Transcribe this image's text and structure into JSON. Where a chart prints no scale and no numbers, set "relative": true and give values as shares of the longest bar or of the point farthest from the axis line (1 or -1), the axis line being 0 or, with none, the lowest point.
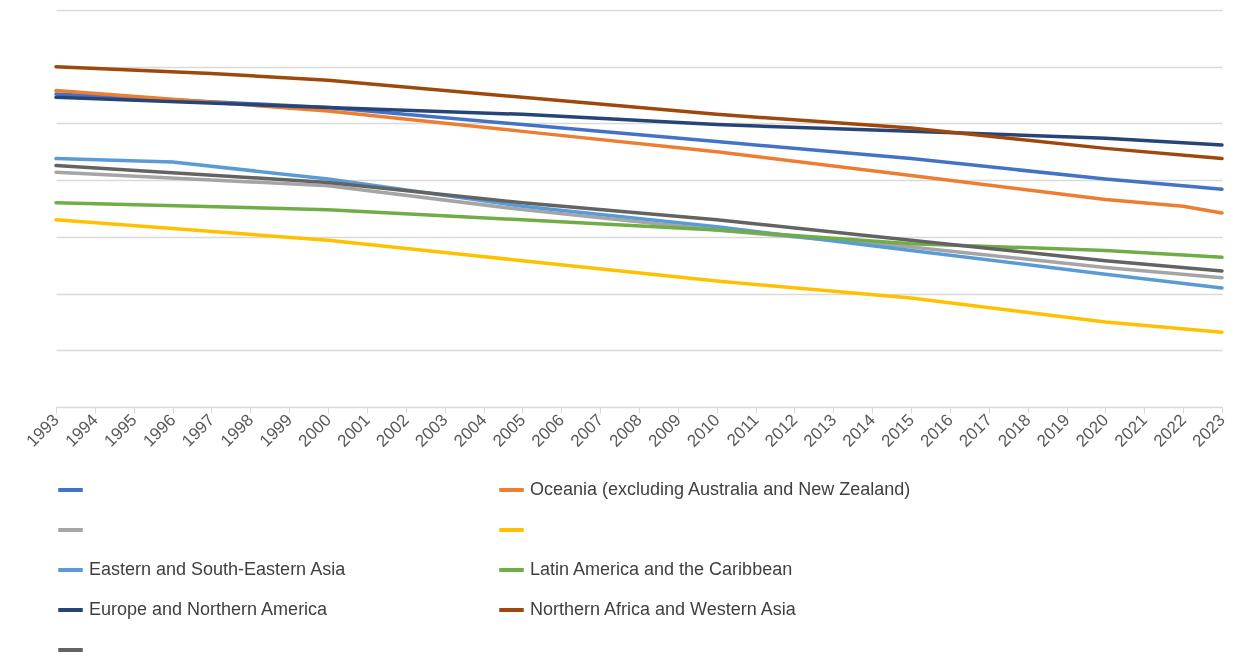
{
  "chart_data": {
    "type": "line",
    "relative": true,
    "xlim": [
      1993,
      2023
    ],
    "xticks": [
      1993,
      1994,
      1995,
      1996,
      1997,
      1998,
      1999,
      2000,
      2001,
      2002,
      2003,
      2004,
      2005,
      2006,
      2007,
      2008,
      2009,
      2010,
      2011,
      2012,
      2013,
      2014,
      2015,
      2016,
      2017,
      2018,
      2019,
      2020,
      2021,
      2022,
      2023
    ],
    "grid": "y",
    "tick_labels": "x",
    "legend": "bottom",
    "line_style": "solid",
    "marker": "none",
    "series": [
      {
        "color": "#4472c4",
        "x": [
          1993,
          2000,
          2005,
          2010,
          2015,
          2020,
          2022,
          2023
        ],
        "values": [
          0.92,
          0.88,
          0.83,
          0.78,
          0.73,
          0.67,
          0.65,
          0.64
        ]
      },
      {
        "name": "Oceania (excluding Australia and New Zealand)",
        "color": "#ed7d31",
        "x": [
          1993,
          2000,
          2005,
          2010,
          2015,
          2020,
          2022,
          2023
        ],
        "values": [
          0.93,
          0.87,
          0.81,
          0.75,
          0.68,
          0.61,
          0.59,
          0.57
        ]
      },
      {
        "color": "#a5a5a5",
        "x": [
          1993,
          2000,
          2005,
          2010,
          2015,
          2020,
          2023
        ],
        "values": [
          0.69,
          0.65,
          0.58,
          0.52,
          0.47,
          0.41,
          0.38
        ]
      },
      {
        "color": "#ffc000",
        "x": [
          1993,
          2000,
          2005,
          2010,
          2015,
          2020,
          2023
        ],
        "values": [
          0.55,
          0.49,
          0.43,
          0.37,
          0.32,
          0.25,
          0.22
        ]
      },
      {
        "name": "Eastern and South-Eastern Asia",
        "color": "#5b9bd5",
        "x": [
          1993,
          1996,
          2000,
          2005,
          2010,
          2015,
          2020,
          2023
        ],
        "values": [
          0.73,
          0.72,
          0.67,
          0.59,
          0.53,
          0.46,
          0.39,
          0.35
        ]
      },
      {
        "name": "Latin America and the Caribbean",
        "color": "#70ad47",
        "x": [
          1993,
          2000,
          2005,
          2010,
          2015,
          2020,
          2023
        ],
        "values": [
          0.6,
          0.58,
          0.55,
          0.52,
          0.48,
          0.46,
          0.44
        ]
      },
      {
        "name": "Europe and Northern America",
        "color": "#264478",
        "x": [
          1993,
          2000,
          2005,
          2010,
          2015,
          2020,
          2023
        ],
        "values": [
          0.91,
          0.88,
          0.86,
          0.83,
          0.81,
          0.79,
          0.77
        ]
      },
      {
        "name": "Northern Africa and Western Asia",
        "color": "#9e480e",
        "x": [
          1993,
          1997,
          2000,
          2005,
          2010,
          2015,
          2020,
          2023
        ],
        "values": [
          1,
          0.98,
          0.96,
          0.91,
          0.86,
          0.82,
          0.76,
          0.73
        ]
      },
      {
        "color": "#636363",
        "x": [
          1993,
          2000,
          2005,
          2010,
          2015,
          2020,
          2023
        ],
        "values": [
          0.71,
          0.66,
          0.6,
          0.55,
          0.49,
          0.43,
          0.4
        ]
      }
    ]
  }
}
